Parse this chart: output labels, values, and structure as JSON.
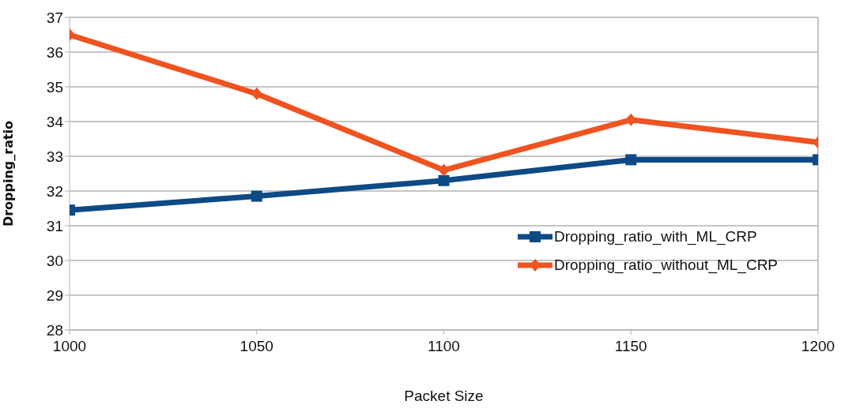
{
  "chart_data": {
    "type": "line",
    "xlabel": "Packet Size",
    "ylabel": "Dropping_ratio",
    "x": [
      1000,
      1050,
      1100,
      1150,
      1200
    ],
    "series": [
      {
        "name": "Dropping_ratio_with_ML_CRP",
        "color": "#0d4a86",
        "marker": "square",
        "values": [
          31.45,
          31.85,
          32.3,
          32.9,
          32.9
        ]
      },
      {
        "name": "Dropping_ratio_without_ML_CRP",
        "color": "#ef5320",
        "marker": "diamond",
        "values": [
          36.5,
          34.8,
          32.6,
          34.05,
          33.4
        ]
      }
    ],
    "xlim": [
      1000,
      1200
    ],
    "xticks": [
      1000,
      1050,
      1100,
      1150,
      1200
    ],
    "ylim": [
      28,
      37
    ],
    "yticks": [
      28,
      29,
      30,
      31,
      32,
      33,
      34,
      35,
      36,
      37
    ],
    "grid": "y",
    "legend": "bottom right"
  }
}
